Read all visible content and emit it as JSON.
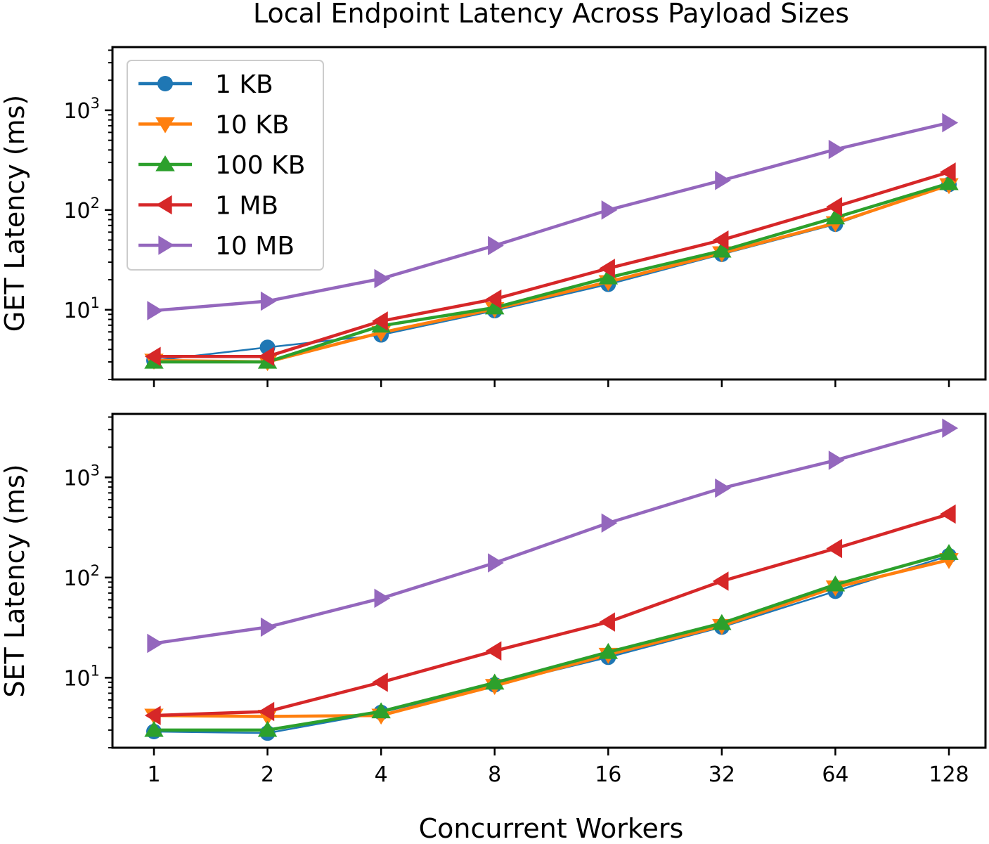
{
  "chart_data": {
    "type": "line",
    "title": "Local Endpoint Latency Across Payload Sizes",
    "xlabel": "Concurrent Workers",
    "x": [
      1,
      2,
      4,
      8,
      16,
      32,
      64,
      128
    ],
    "x_scale": "log2",
    "y_scale": "log",
    "grid": false,
    "legend": "upper-left",
    "legend_panel": 0,
    "series_styles": [
      {
        "name": "1 KB",
        "color": "#1f77b4",
        "marker": "circle"
      },
      {
        "name": "10 KB",
        "color": "#ff7f0e",
        "marker": "triangle-down"
      },
      {
        "name": "100 KB",
        "color": "#2ca02c",
        "marker": "triangle-up"
      },
      {
        "name": "1 MB",
        "color": "#d62728",
        "marker": "triangle-left"
      },
      {
        "name": "10 MB",
        "color": "#9467bd",
        "marker": "triangle-right"
      }
    ],
    "panels": [
      {
        "ylabel": "GET Latency (ms)",
        "yticks": [
          {
            "base": "10",
            "exp": "1",
            "value": 10
          },
          {
            "base": "10",
            "exp": "2",
            "value": 100
          },
          {
            "base": "10",
            "exp": "3",
            "value": 1000
          }
        ],
        "ylim": [
          2.0,
          4300
        ],
        "series": [
          {
            "name": "1 KB",
            "values": [
              3.1,
              4.2,
              5.6,
              9.8,
              18,
              36,
              72,
              180
            ]
          },
          {
            "name": "10 KB",
            "values": [
              3.1,
              3.0,
              5.9,
              10.2,
              19,
              37,
              74,
              178
            ]
          },
          {
            "name": "100 KB",
            "values": [
              3.0,
              3.0,
              6.9,
              10.5,
              21,
              39,
              84,
              185
            ]
          },
          {
            "name": "1 MB",
            "values": [
              3.4,
              3.4,
              7.7,
              12.8,
              26,
              50,
              108,
              240
            ]
          },
          {
            "name": "10 MB",
            "values": [
              9.8,
              12.2,
              20.5,
              44,
              100,
              198,
              405,
              750
            ]
          }
        ]
      },
      {
        "ylabel": "SET Latency (ms)",
        "yticks": [
          {
            "base": "10",
            "exp": "1",
            "value": 10
          },
          {
            "base": "10",
            "exp": "2",
            "value": 100
          },
          {
            "base": "10",
            "exp": "3",
            "value": 1000
          }
        ],
        "ylim": [
          2.0,
          4300
        ],
        "series": [
          {
            "name": "1 KB",
            "values": [
              2.9,
              2.8,
              4.5,
              8.5,
              16,
              32,
              73,
              165
            ]
          },
          {
            "name": "10 KB",
            "values": [
              4.2,
              4.1,
              4.2,
              8.3,
              17,
              33,
              80,
              150
            ]
          },
          {
            "name": "100 KB",
            "values": [
              3.0,
              3.0,
              4.6,
              8.9,
              18,
              35,
              85,
              175
            ]
          },
          {
            "name": "1 MB",
            "values": [
              4.2,
              4.6,
              9.0,
              18.5,
              36,
              92,
              195,
              430
            ]
          },
          {
            "name": "10 MB",
            "values": [
              22,
              32,
              62,
              140,
              350,
              780,
              1480,
              3100
            ]
          }
        ]
      }
    ]
  }
}
